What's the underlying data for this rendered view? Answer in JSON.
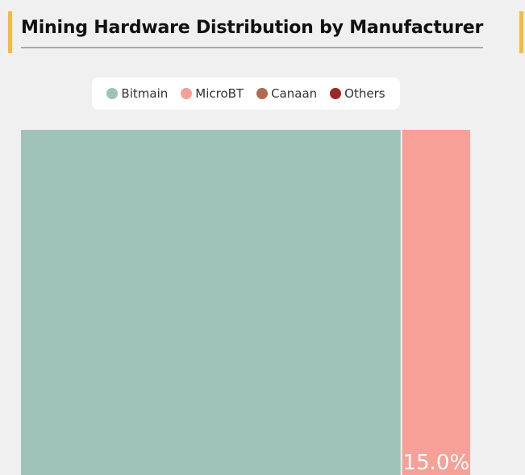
{
  "header": {
    "title": "Mining Hardware Distribution by Manufacturer"
  },
  "legend": {
    "items": [
      {
        "label": "Bitmain",
        "color": "#9fc3b8"
      },
      {
        "label": "MicroBT",
        "color": "#f6a097"
      },
      {
        "label": "Canaan",
        "color": "#b06a50"
      },
      {
        "label": "Others",
        "color": "#9a2a26"
      }
    ]
  },
  "chart_data": {
    "type": "treemap",
    "title": "Mining Hardware Distribution by Manufacturer",
    "series": [
      {
        "name": "Bitmain",
        "value": 82.0,
        "color": "#9fc3b8"
      },
      {
        "name": "MicroBT",
        "value": 15.0,
        "color": "#f6a097",
        "label": "15.0%"
      }
    ],
    "legend_position": "top",
    "colors": {
      "background": "#eff0ef",
      "accent": "#f6bb3a"
    }
  }
}
